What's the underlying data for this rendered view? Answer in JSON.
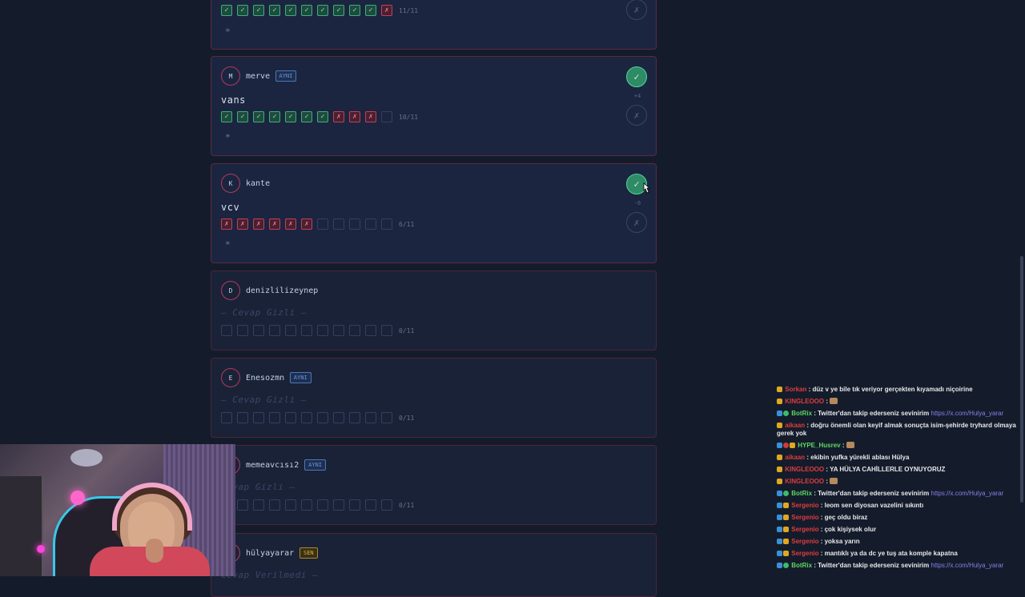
{
  "cards": [
    {
      "avatar": "",
      "username": "",
      "tag": "",
      "answer": "",
      "answer_hidden": false,
      "marks": [
        "ok",
        "ok",
        "ok",
        "ok",
        "ok",
        "ok",
        "ok",
        "ok",
        "ok",
        "ok",
        "bad"
      ],
      "score": "11/11",
      "delta": "",
      "accepted": false
    },
    {
      "avatar": "M",
      "username": "merve",
      "tag": "AYNI",
      "answer": "vans",
      "answer_hidden": false,
      "marks": [
        "ok",
        "ok",
        "ok",
        "ok",
        "ok",
        "ok",
        "ok",
        "bad",
        "bad",
        "bad",
        "empty"
      ],
      "score": "10/11",
      "delta": "+4",
      "accepted": true
    },
    {
      "avatar": "K",
      "username": "kante",
      "tag": "",
      "answer": "vcv",
      "answer_hidden": false,
      "marks": [
        "bad",
        "bad",
        "bad",
        "bad",
        "bad",
        "bad",
        "empty",
        "empty",
        "empty",
        "empty",
        "empty"
      ],
      "score": "6/11",
      "delta": "-6",
      "accepted": true
    },
    {
      "avatar": "D",
      "username": "denizlilizeynep",
      "tag": "",
      "answer": "— Cevap Gizli —",
      "answer_hidden": true,
      "marks": [
        "empty",
        "empty",
        "empty",
        "empty",
        "empty",
        "empty",
        "empty",
        "empty",
        "empty",
        "empty",
        "empty"
      ],
      "score": "0/11"
    },
    {
      "avatar": "E",
      "username": "Enesozmn",
      "tag": "AYNI",
      "answer": "— Cevap Gizli —",
      "answer_hidden": true,
      "marks": [
        "empty",
        "empty",
        "empty",
        "empty",
        "empty",
        "empty",
        "empty",
        "empty",
        "empty",
        "empty",
        "empty"
      ],
      "score": "0/11"
    },
    {
      "avatar": "",
      "username": "memeavcısı2",
      "tag": "AYNI",
      "answer": "Cevap Gizli —",
      "answer_hidden": true,
      "marks": [
        "empty",
        "empty",
        "empty",
        "empty",
        "empty",
        "empty",
        "empty",
        "empty",
        "empty",
        "empty",
        "empty"
      ],
      "score": "0/11"
    },
    {
      "avatar": "",
      "username": "hülyayarar",
      "tag": "SEN",
      "answer": "Cevap Verilmedi —",
      "answer_hidden": true,
      "marks": [],
      "score": ""
    }
  ],
  "icons": {
    "check": "✓",
    "cross": "✗",
    "menu": "≡"
  },
  "chat": [
    {
      "badges": [
        "gold"
      ],
      "user": "Sorkan",
      "user_color": "#e03c3c",
      "text": ": düz v ye bile tık veriyor gerçekten kıyamadı niçoirine",
      "link": ""
    },
    {
      "badges": [
        "gold"
      ],
      "user": "KINGLEOOO",
      "user_color": "#e03c3c",
      "text": ":",
      "link": "",
      "emote": true
    },
    {
      "badges": [
        "blue",
        "green"
      ],
      "user": "BotRix",
      "user_color": "#5fd95f",
      "text": ": Twitter'dan takip ederseniz sevinirim",
      "link": "https://x.com/Hulya_yarar"
    },
    {
      "badges": [
        "gold"
      ],
      "user": "aikaan",
      "user_color": "#e03c3c",
      "text": ": doğru önemli olan keyif almak sonuçta isim-şehirde tryhard olmaya gerek yok",
      "link": ""
    },
    {
      "badges": [
        "blue",
        "red",
        "gold"
      ],
      "user": "HYPE_Husrev",
      "user_color": "#5fd95f",
      "text": ":",
      "link": "",
      "emote": true
    },
    {
      "badges": [
        "gold"
      ],
      "user": "aikaan",
      "user_color": "#e03c3c",
      "text": ": ekibin yufka yürekli ablası Hülya",
      "link": ""
    },
    {
      "badges": [
        "gold"
      ],
      "user": "KINGLEOOO",
      "user_color": "#e03c3c",
      "text": ": YA HÜLYA CAHİLLERLE OYNUYORUZ",
      "link": ""
    },
    {
      "badges": [
        "gold"
      ],
      "user": "KINGLEOOO",
      "user_color": "#e03c3c",
      "text": ":",
      "link": "",
      "emote": true
    },
    {
      "badges": [
        "blue",
        "green"
      ],
      "user": "BotRix",
      "user_color": "#5fd95f",
      "text": ": Twitter'dan takip ederseniz sevinirim",
      "link": "https://x.com/Hulya_yarar"
    },
    {
      "badges": [
        "blue",
        "gold"
      ],
      "user": "Sergenio",
      "user_color": "#e03c3c",
      "text": ": leom sen diyosan vazelini sıkıntı",
      "link": ""
    },
    {
      "badges": [
        "blue",
        "gold"
      ],
      "user": "Sergenio",
      "user_color": "#e03c3c",
      "text": ": geç oldu biraz",
      "link": ""
    },
    {
      "badges": [
        "blue",
        "gold"
      ],
      "user": "Sergenio",
      "user_color": "#e03c3c",
      "text": ": çok kişiysek olur",
      "link": ""
    },
    {
      "badges": [
        "blue",
        "gold"
      ],
      "user": "Sergenio",
      "user_color": "#e03c3c",
      "text": ": yoksa yarın",
      "link": ""
    },
    {
      "badges": [
        "blue",
        "gold"
      ],
      "user": "Sergenio",
      "user_color": "#e03c3c",
      "text": ": mantıklı ya da dc ye tuş ata komple kapatna",
      "link": ""
    },
    {
      "badges": [
        "blue",
        "green"
      ],
      "user": "BotRix",
      "user_color": "#5fd95f",
      "text": ": Twitter'dan takip ederseniz sevinirim",
      "link": "https://x.com/Hulya_yarar"
    }
  ]
}
